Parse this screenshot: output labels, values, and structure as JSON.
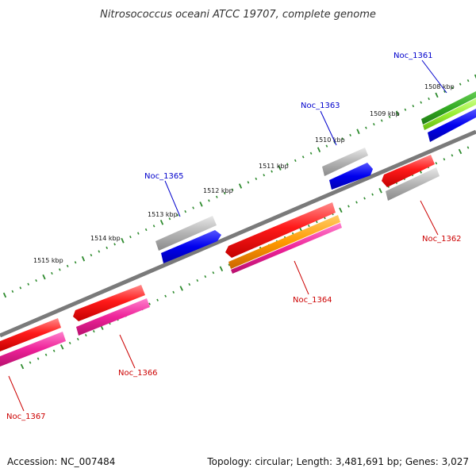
{
  "title": "Nitrosococcus oceani ATCC 19707, complete genome",
  "footer": {
    "accession": "Accession: NC_007484",
    "summary": "Topology: circular; Length: 3,481,691 bp; Genes: 3,027"
  },
  "colors": {
    "backbone": "#7a7a7a",
    "tick": "#2e8b2e",
    "label_forward": "#0000cc",
    "label_reverse": "#cc0000",
    "red": "#ee1111",
    "blue": "#0000ee",
    "gray": "#b4b4b4",
    "pink": "#ee2299",
    "orange": "#ff9900",
    "green": "#33aa22",
    "lightgreen": "#99ee33"
  },
  "kbp_labels": [
    {
      "id": "1508",
      "text": "1508 kbp"
    },
    {
      "id": "1509",
      "text": "1509 kbp"
    },
    {
      "id": "1510",
      "text": "1510 kbp"
    },
    {
      "id": "1511",
      "text": "1511 kbp"
    },
    {
      "id": "1512",
      "text": "1512 kbp"
    },
    {
      "id": "1513",
      "text": "1513 kbp"
    },
    {
      "id": "1514",
      "text": "1514 kbp"
    },
    {
      "id": "1515",
      "text": "1515 kbp"
    }
  ],
  "genes": [
    {
      "id": "Noc_1361",
      "label": "Noc_1361",
      "strand": "forward"
    },
    {
      "id": "Noc_1362",
      "label": "Noc_1362",
      "strand": "reverse"
    },
    {
      "id": "Noc_1363",
      "label": "Noc_1363",
      "strand": "forward"
    },
    {
      "id": "Noc_1364",
      "label": "Noc_1364",
      "strand": "reverse"
    },
    {
      "id": "Noc_1365",
      "label": "Noc_1365",
      "strand": "forward"
    },
    {
      "id": "Noc_1366",
      "label": "Noc_1366",
      "strand": "reverse"
    },
    {
      "id": "Noc_1367",
      "label": "Noc_1367",
      "strand": "reverse"
    }
  ]
}
